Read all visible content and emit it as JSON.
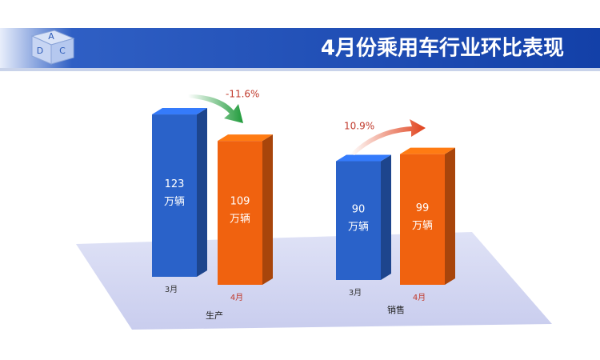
{
  "chart_data": {
    "type": "bar3d",
    "title": "4月份乘用车行业环比表现",
    "logo_letters": [
      "A",
      "D",
      "C"
    ],
    "unit": "万辆",
    "groups": [
      {
        "name": "生产",
        "categories": [
          "3月",
          "4月"
        ],
        "values": [
          123,
          109
        ],
        "change": {
          "value": -11.6,
          "label": "-11.6%"
        }
      },
      {
        "name": "销售",
        "categories": [
          "3月",
          "4月"
        ],
        "values": [
          90,
          99
        ],
        "change": {
          "value": 10.9,
          "label": "10.9%"
        }
      }
    ],
    "colors": [
      "#2a62c9",
      "#f0620f"
    ]
  }
}
